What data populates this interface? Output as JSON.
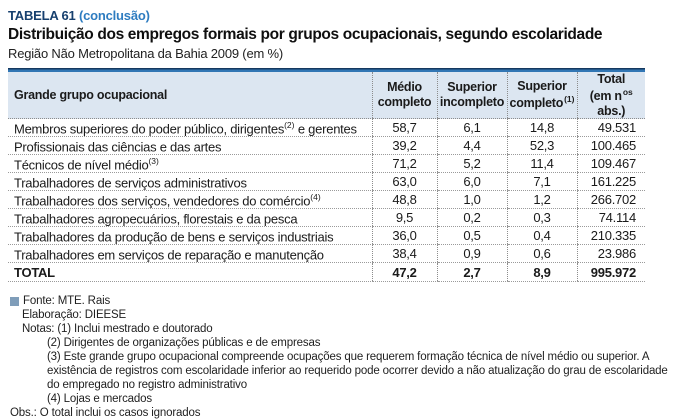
{
  "header": {
    "table_label": "TABELA 61",
    "table_label_note": "(conclusão)",
    "title": "Distribuição dos empregos formais por grupos ocupacionais, segundo escolaridade",
    "subtitle": "Região Não Metropolitana da Bahia 2009 (em %)"
  },
  "table": {
    "col_header": {
      "col0": "Grande grupo ocupacional",
      "col1_line1": "Médio",
      "col1_line2": "completo",
      "col2_line1": "Superior",
      "col2_line2": "incompleto",
      "col3_line1": "Superior",
      "col3_line2": "completo",
      "col3_sup": "(1)",
      "col4_line1": "Total",
      "col4_line2a": "(em n",
      "col4_sup": "os",
      "col4_line2b": " abs.)"
    },
    "rows": [
      {
        "label": "Membros superiores do poder público, dirigentes",
        "label_sup": "(2)",
        "label_end": " e gerentes",
        "medio_completo": "58,7",
        "superior_incompleto": "6,1",
        "superior_completo": "14,8",
        "total": "49.531"
      },
      {
        "label": "Profissionais das ciências e das artes",
        "label_sup": "",
        "label_end": "",
        "medio_completo": "39,2",
        "superior_incompleto": "4,4",
        "superior_completo": "52,3",
        "total": "100.465"
      },
      {
        "label": "Técnicos de nível médio",
        "label_sup": "(3)",
        "label_end": "",
        "medio_completo": "71,2",
        "superior_incompleto": "5,2",
        "superior_completo": "11,4",
        "total": "109.467"
      },
      {
        "label": "Trabalhadores de serviços administrativos",
        "label_sup": "",
        "label_end": "",
        "medio_completo": "63,0",
        "superior_incompleto": "6,0",
        "superior_completo": "7,1",
        "total": "161.225"
      },
      {
        "label": "Trabalhadores dos serviços, vendedores do comércio",
        "label_sup": "(4)",
        "label_end": "",
        "medio_completo": "48,8",
        "superior_incompleto": "1,0",
        "superior_completo": "1,2",
        "total": "266.702"
      },
      {
        "label": "Trabalhadores agropecuários, florestais e da pesca",
        "label_sup": "",
        "label_end": "",
        "medio_completo": "9,5",
        "superior_incompleto": "0,2",
        "superior_completo": "0,3",
        "total": "74.114"
      },
      {
        "label": "Trabalhadores da produção de bens e serviços industriais",
        "label_sup": "",
        "label_end": "",
        "medio_completo": "36,0",
        "superior_incompleto": "0,5",
        "superior_completo": "0,4",
        "total": "210.335"
      },
      {
        "label": "Trabalhadores em serviços de reparação e manutenção",
        "label_sup": "",
        "label_end": "",
        "medio_completo": "38,4",
        "superior_incompleto": "0,9",
        "superior_completo": "0,6",
        "total": "23.986"
      }
    ],
    "total_row": {
      "label": "TOTAL",
      "medio_completo": "47,2",
      "superior_incompleto": "2,7",
      "superior_completo": "8,9",
      "total": "995.972"
    }
  },
  "footer": {
    "fonte": "Fonte: MTE. Rais",
    "elaboracao": "Elaboração: DIEESE",
    "nota1_line": "Notas: (1) Inclui mestrado e doutorado",
    "nota2": "(2) Dirigentes de organizações públicas e de empresas",
    "nota3": "(3) Este grande grupo ocupacional compreende ocupações que requerem formação técnica de nível médio ou superior. A existência de registros com escolaridade inferior ao requerido pode ocorrer devido a não atualização do grau de escolaridade do empregado no registro administrativo",
    "nota4": "(4) Lojas e mercados",
    "obs": "Obs.: O total inclui os casos ignorados"
  },
  "colors": {
    "title_navy": "#17406e",
    "title_blue": "#2e7cc0",
    "header_bg": "#dce6f1",
    "top_line_dark": "#16395f",
    "top_line_blue": "#3176b4",
    "bullet_blue": "#7f9db9"
  },
  "chart_data": {
    "type": "table",
    "title": "Distribuição dos empregos formais por grupos ocupacionais, segundo escolaridade — Região Não Metropolitana da Bahia 2009 (em %)",
    "columns": [
      "Grande grupo ocupacional",
      "Médio completo (%)",
      "Superior incompleto (%)",
      "Superior completo (%)",
      "Total (em nºs abs.)"
    ],
    "rows": [
      [
        "Membros superiores do poder público, dirigentes e gerentes",
        58.7,
        6.1,
        14.8,
        49531
      ],
      [
        "Profissionais das ciências e das artes",
        39.2,
        4.4,
        52.3,
        100465
      ],
      [
        "Técnicos de nível médio",
        71.2,
        5.2,
        11.4,
        109467
      ],
      [
        "Trabalhadores de serviços administrativos",
        63.0,
        6.0,
        7.1,
        161225
      ],
      [
        "Trabalhadores dos serviços, vendedores do comércio",
        48.8,
        1.0,
        1.2,
        266702
      ],
      [
        "Trabalhadores agropecuários, florestais e da pesca",
        9.5,
        0.2,
        0.3,
        74114
      ],
      [
        "Trabalhadores da produção de bens e serviços industriais",
        36.0,
        0.5,
        0.4,
        210335
      ],
      [
        "Trabalhadores em serviços de reparação e manutenção",
        38.4,
        0.9,
        0.6,
        23986
      ],
      [
        "TOTAL",
        47.2,
        2.7,
        8.9,
        995972
      ]
    ],
    "notes": [
      "(1) Inclui mestrado e doutorado",
      "(2) Dirigentes de organizações públicas e de empresas",
      "(3) Grupo compreende ocupações que requerem formação técnica de nível médio ou superior",
      "(4) Lojas e mercados",
      "O total inclui os casos ignorados"
    ],
    "source": "Fonte: MTE. Rais — Elaboração: DIEESE"
  }
}
